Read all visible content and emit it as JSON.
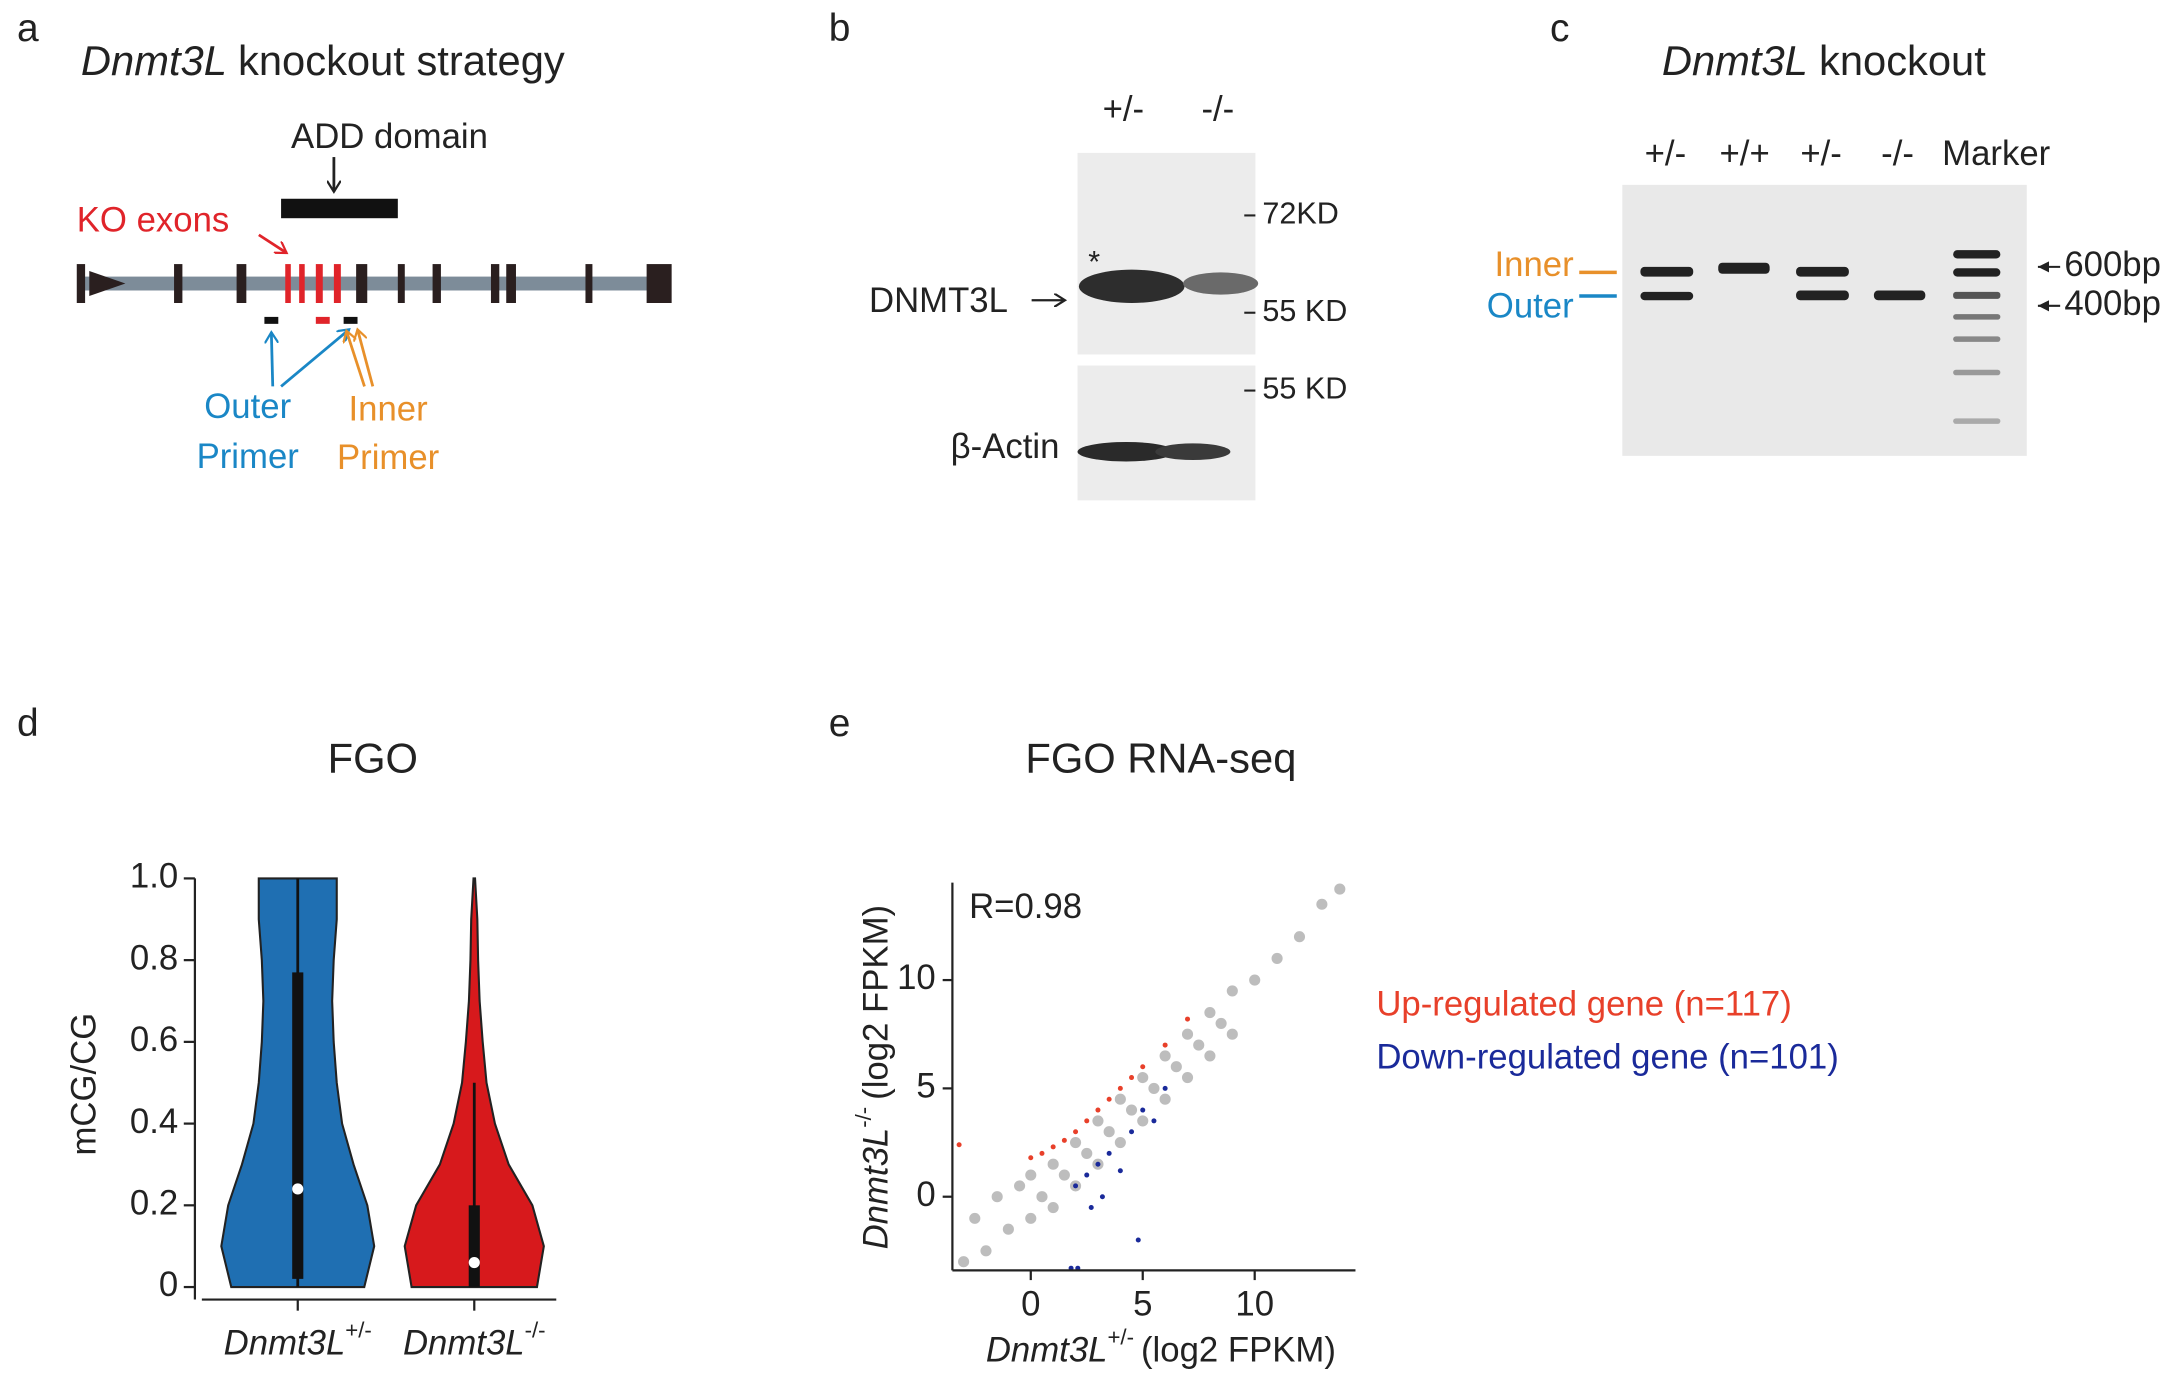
{
  "panel_a": {
    "label": "a",
    "title_gene": "Dnmt3L",
    "title_rest": "knockout strategy",
    "domain": "ADD domain",
    "ko_exons": "KO exons",
    "outer": "Outer",
    "inner": "Inner",
    "primer_outer": "Primer",
    "primer_inner": "Primer"
  },
  "panel_b": {
    "label": "b",
    "lanes": [
      "+/-",
      "-/-"
    ],
    "protein": "DNMT3L",
    "asterisk": "*",
    "loading": "β-Actin",
    "markers": [
      "72KD",
      "55 KD",
      "55 KD"
    ]
  },
  "panel_c": {
    "label": "c",
    "title_gene": "Dnmt3L",
    "title_rest": "knockout",
    "lanes": [
      "+/-",
      "+/+",
      "+/-",
      "-/-",
      "Marker"
    ],
    "inner": "Inner",
    "outer": "Outer",
    "sizes": [
      "600bp",
      "400bp"
    ]
  },
  "chart_data": [
    {
      "type": "violin",
      "panel": "d",
      "title": "FGO",
      "ylabel": "mCG/CG",
      "ylim": [
        0,
        1
      ],
      "yticks": [
        0,
        0.2,
        0.4,
        0.6,
        0.8,
        {
          "value": 1,
          "label": "1.0"
        }
      ],
      "categories": [
        {
          "gene": "Dnmt3L",
          "genotype": "+/-"
        },
        {
          "gene": "Dnmt3L",
          "genotype": "-/-"
        }
      ],
      "density_at": [
        0,
        0.1,
        0.2,
        0.3,
        0.4,
        0.5,
        0.6,
        0.7,
        0.8,
        0.9,
        1
      ],
      "series": [
        {
          "color": "#1f6fb2",
          "median": 0.24,
          "q1": 0.02,
          "q3": 0.77,
          "whisker_low": 0,
          "whisker_high": 1,
          "density": [
            0.87,
            1,
            0.91,
            0.73,
            0.58,
            0.51,
            0.47,
            0.45,
            0.47,
            0.51,
            0.51
          ]
        },
        {
          "color": "#d7191c",
          "median": 0.06,
          "q1": 0,
          "q3": 0.2,
          "whisker_low": 0,
          "whisker_high": 0.5,
          "density": [
            0.82,
            0.91,
            0.76,
            0.45,
            0.27,
            0.16,
            0.11,
            0.07,
            0.05,
            0.04,
            0.01
          ]
        }
      ]
    },
    {
      "type": "scatter",
      "panel": "e",
      "title": "FGO RNA-seq",
      "annotation": "R=0.98",
      "xlabel": {
        "gene": "Dnmt3L",
        "genotype": "+/-",
        "rest": "(log2 FPKM)"
      },
      "ylabel": {
        "gene": "Dnmt3L",
        "genotype": "-/-",
        "rest": "(log2 FPKM)"
      },
      "xlim": [
        -3.5,
        14.5
      ],
      "ylim": [
        -3.4,
        14.5
      ],
      "xticks": [
        0,
        5,
        10
      ],
      "yticks": [
        0,
        5,
        10
      ],
      "series": [
        {
          "color": "#bdbdbd",
          "x": [
            -3,
            -2.5,
            -2,
            -1.5,
            -1,
            -0.5,
            0,
            0,
            0.5,
            1,
            1,
            1.5,
            2,
            2,
            2.5,
            3,
            3,
            3.5,
            4,
            4,
            4.5,
            5,
            5,
            5.5,
            6,
            6,
            6.5,
            7,
            7,
            7.5,
            8,
            8,
            8.5,
            9,
            9,
            10,
            11,
            12,
            13,
            13.8
          ],
          "y": [
            -3,
            -1,
            -2.5,
            0,
            -1.5,
            0.5,
            -1,
            1,
            0,
            1.5,
            -0.5,
            1,
            2.5,
            0.5,
            2,
            3.5,
            1.5,
            3,
            4.5,
            2.5,
            4,
            5.5,
            3.5,
            5,
            6.5,
            4.5,
            6,
            7.5,
            5.5,
            7,
            8.5,
            6.5,
            8,
            9.5,
            7.5,
            10,
            11,
            12,
            13.5,
            14.2
          ]
        },
        {
          "name": "Up-regulated gene (n=117)",
          "color": "#e8402a",
          "x": [
            -3.2,
            0,
            0.5,
            1,
            1.5,
            2,
            2.5,
            3,
            3.5,
            4,
            4.5,
            5,
            6,
            7
          ],
          "y": [
            2.4,
            1.8,
            2,
            2.3,
            2.6,
            3,
            3.5,
            4,
            4.5,
            5,
            5.5,
            6,
            7,
            8.2
          ]
        },
        {
          "name": "Down-regulated gene (n=101)",
          "color": "#1a2a9a",
          "x": [
            2,
            2.5,
            2.7,
            3,
            3.2,
            3.5,
            4,
            4.5,
            4.8,
            5,
            5.5,
            6,
            2.1,
            1.8
          ],
          "y": [
            0.5,
            1,
            -0.5,
            1.5,
            0,
            2,
            1.2,
            3,
            -2,
            4,
            3.5,
            5,
            -3.3,
            -3.3
          ]
        }
      ]
    }
  ]
}
